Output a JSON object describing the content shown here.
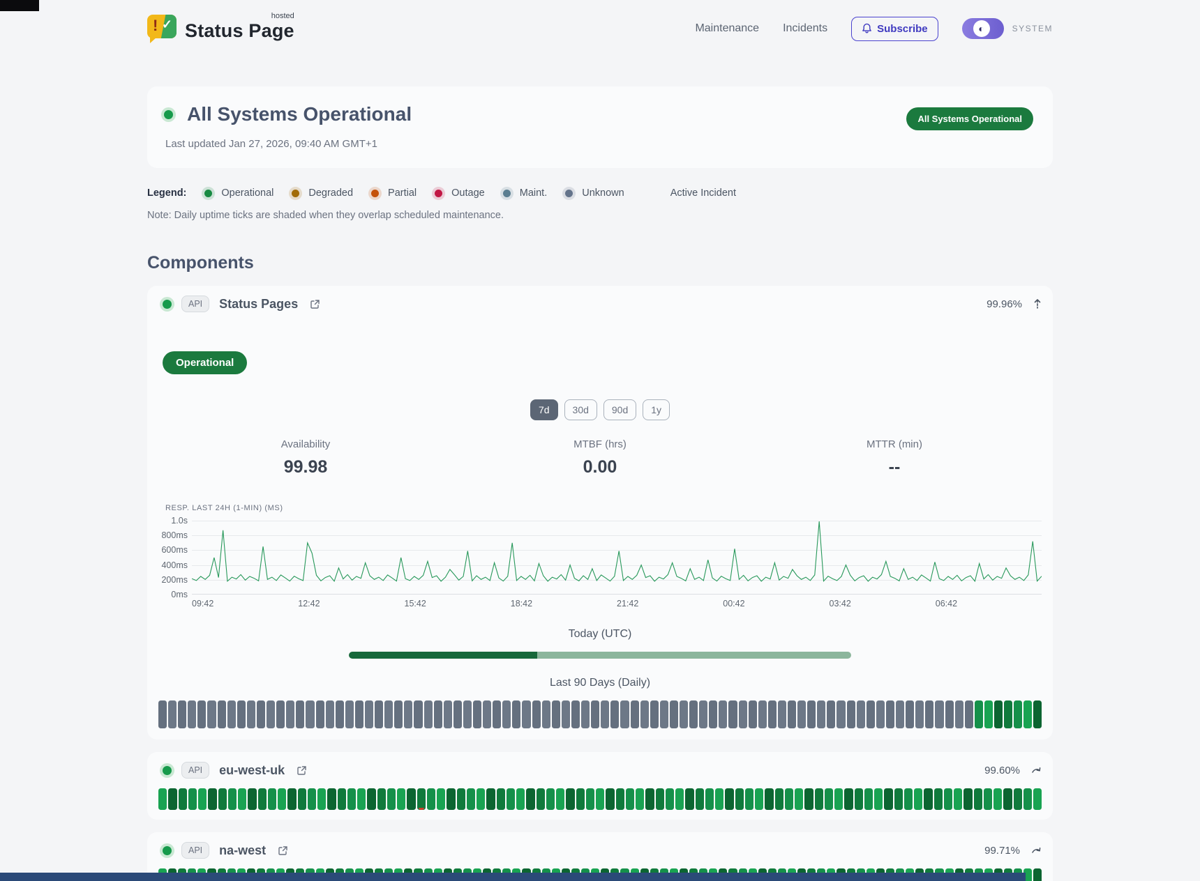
{
  "header": {
    "brand": {
      "name": "Status Page",
      "superscript": "hosted"
    },
    "nav": {
      "maintenance": "Maintenance",
      "incidents": "Incidents"
    },
    "subscribe_label": "Subscribe",
    "theme_label": "SYSTEM"
  },
  "hero": {
    "title": "All Systems Operational",
    "updated": "Last updated Jan 27, 2026, 09:40 AM GMT+1",
    "badge": "All Systems Operational"
  },
  "legend": {
    "label": "Legend:",
    "items": [
      {
        "label": "Operational",
        "color": "#178a42"
      },
      {
        "label": "Degraded",
        "color": "#a16b07"
      },
      {
        "label": "Partial",
        "color": "#c4510a"
      },
      {
        "label": "Outage",
        "color": "#c11745"
      },
      {
        "label": "Maint.",
        "color": "#5b7e91"
      },
      {
        "label": "Unknown",
        "color": "#64748b"
      }
    ],
    "active_incident": "Active Incident",
    "note": "Note: Daily uptime ticks are shaded when they overlap scheduled maintenance."
  },
  "components_title": "Components",
  "components": [
    {
      "tag": "API",
      "name": "Status Pages",
      "uptime": "99.96%",
      "status_badge": "Operational",
      "range_buttons": [
        {
          "label": "7d",
          "active": true
        },
        {
          "label": "30d",
          "active": false
        },
        {
          "label": "90d",
          "active": false
        },
        {
          "label": "1y",
          "active": false
        }
      ],
      "stats": [
        {
          "label": "Availability",
          "value": "99.98"
        },
        {
          "label": "MTBF (hrs)",
          "value": "0.00"
        },
        {
          "label": "MTTR (min)",
          "value": "--"
        }
      ],
      "today_label": "Today (UTC)",
      "today_progress_pct": 37.5,
      "ninety_label": "Last 90 Days (Daily)",
      "ticks": "uuuuuuuuuuuuuuuuuuuuuuuuuuuuuuuuuuuuuuuuuuuuuuuuuuuuuuuuuuuuuuuuuuuuuuuuuuuuuuuuuuuooooooo"
    },
    {
      "tag": "API",
      "name": "eu-west-uk",
      "uptime": "99.60%",
      "ticks": "oooooooooooooooooooooooooopoooooooooooooooooooooooooooooooooooooooooooooooooooooooooooooo"
    },
    {
      "tag": "API",
      "name": "na-west",
      "uptime": "99.71%",
      "ticks": "ooooooooooooooooooooooooooooooopoooooooooooooooooooooooooooooooooooooooooooooooooooooooooo"
    }
  ],
  "chart_data": {
    "type": "line",
    "title": "RESP. LAST 24H (1-MIN) (MS)",
    "line_color": "#27985a",
    "ylim": [
      0,
      1000
    ],
    "y_ticks": [
      "1.0s",
      "800ms",
      "600ms",
      "400ms",
      "200ms",
      "0ms"
    ],
    "x_labels": [
      "09:42",
      "12:42",
      "15:42",
      "18:42",
      "21:42",
      "00:42",
      "03:42",
      "06:42"
    ],
    "values": [
      215,
      190,
      245,
      205,
      260,
      500,
      230,
      870,
      180,
      235,
      210,
      270,
      195,
      245,
      220,
      185,
      650,
      205,
      235,
      190,
      265,
      225,
      182,
      248,
      215,
      190,
      700,
      560,
      260,
      185,
      230,
      255,
      180,
      360,
      210,
      270,
      195,
      245,
      220,
      430,
      255,
      205,
      235,
      190,
      265,
      225,
      182,
      500,
      215,
      190,
      245,
      205,
      260,
      450,
      230,
      255,
      180,
      235,
      340,
      270,
      195,
      245,
      590,
      185,
      255,
      205,
      235,
      190,
      430,
      225,
      182,
      248,
      700,
      190,
      245,
      205,
      260,
      185,
      420,
      255,
      180,
      235,
      210,
      270,
      195,
      400,
      220,
      185,
      255,
      205,
      350,
      190,
      265,
      225,
      182,
      248,
      590,
      190,
      245,
      205,
      260,
      400,
      230,
      255,
      180,
      235,
      210,
      270,
      430,
      245,
      220,
      185,
      350,
      205,
      235,
      190,
      470,
      225,
      182,
      248,
      215,
      190,
      620,
      205,
      260,
      185,
      230,
      255,
      180,
      235,
      210,
      430,
      195,
      245,
      220,
      340,
      255,
      205,
      235,
      190,
      265,
      990,
      182,
      248,
      215,
      190,
      245,
      400,
      260,
      185,
      230,
      255,
      180,
      235,
      210,
      270,
      450,
      245,
      220,
      185,
      350,
      205,
      235,
      190,
      265,
      225,
      182,
      440,
      215,
      190,
      245,
      205,
      260,
      185,
      230,
      255,
      180,
      420,
      210,
      270,
      195,
      245,
      220,
      360,
      255,
      205,
      235,
      190,
      265,
      720,
      182,
      248
    ]
  }
}
